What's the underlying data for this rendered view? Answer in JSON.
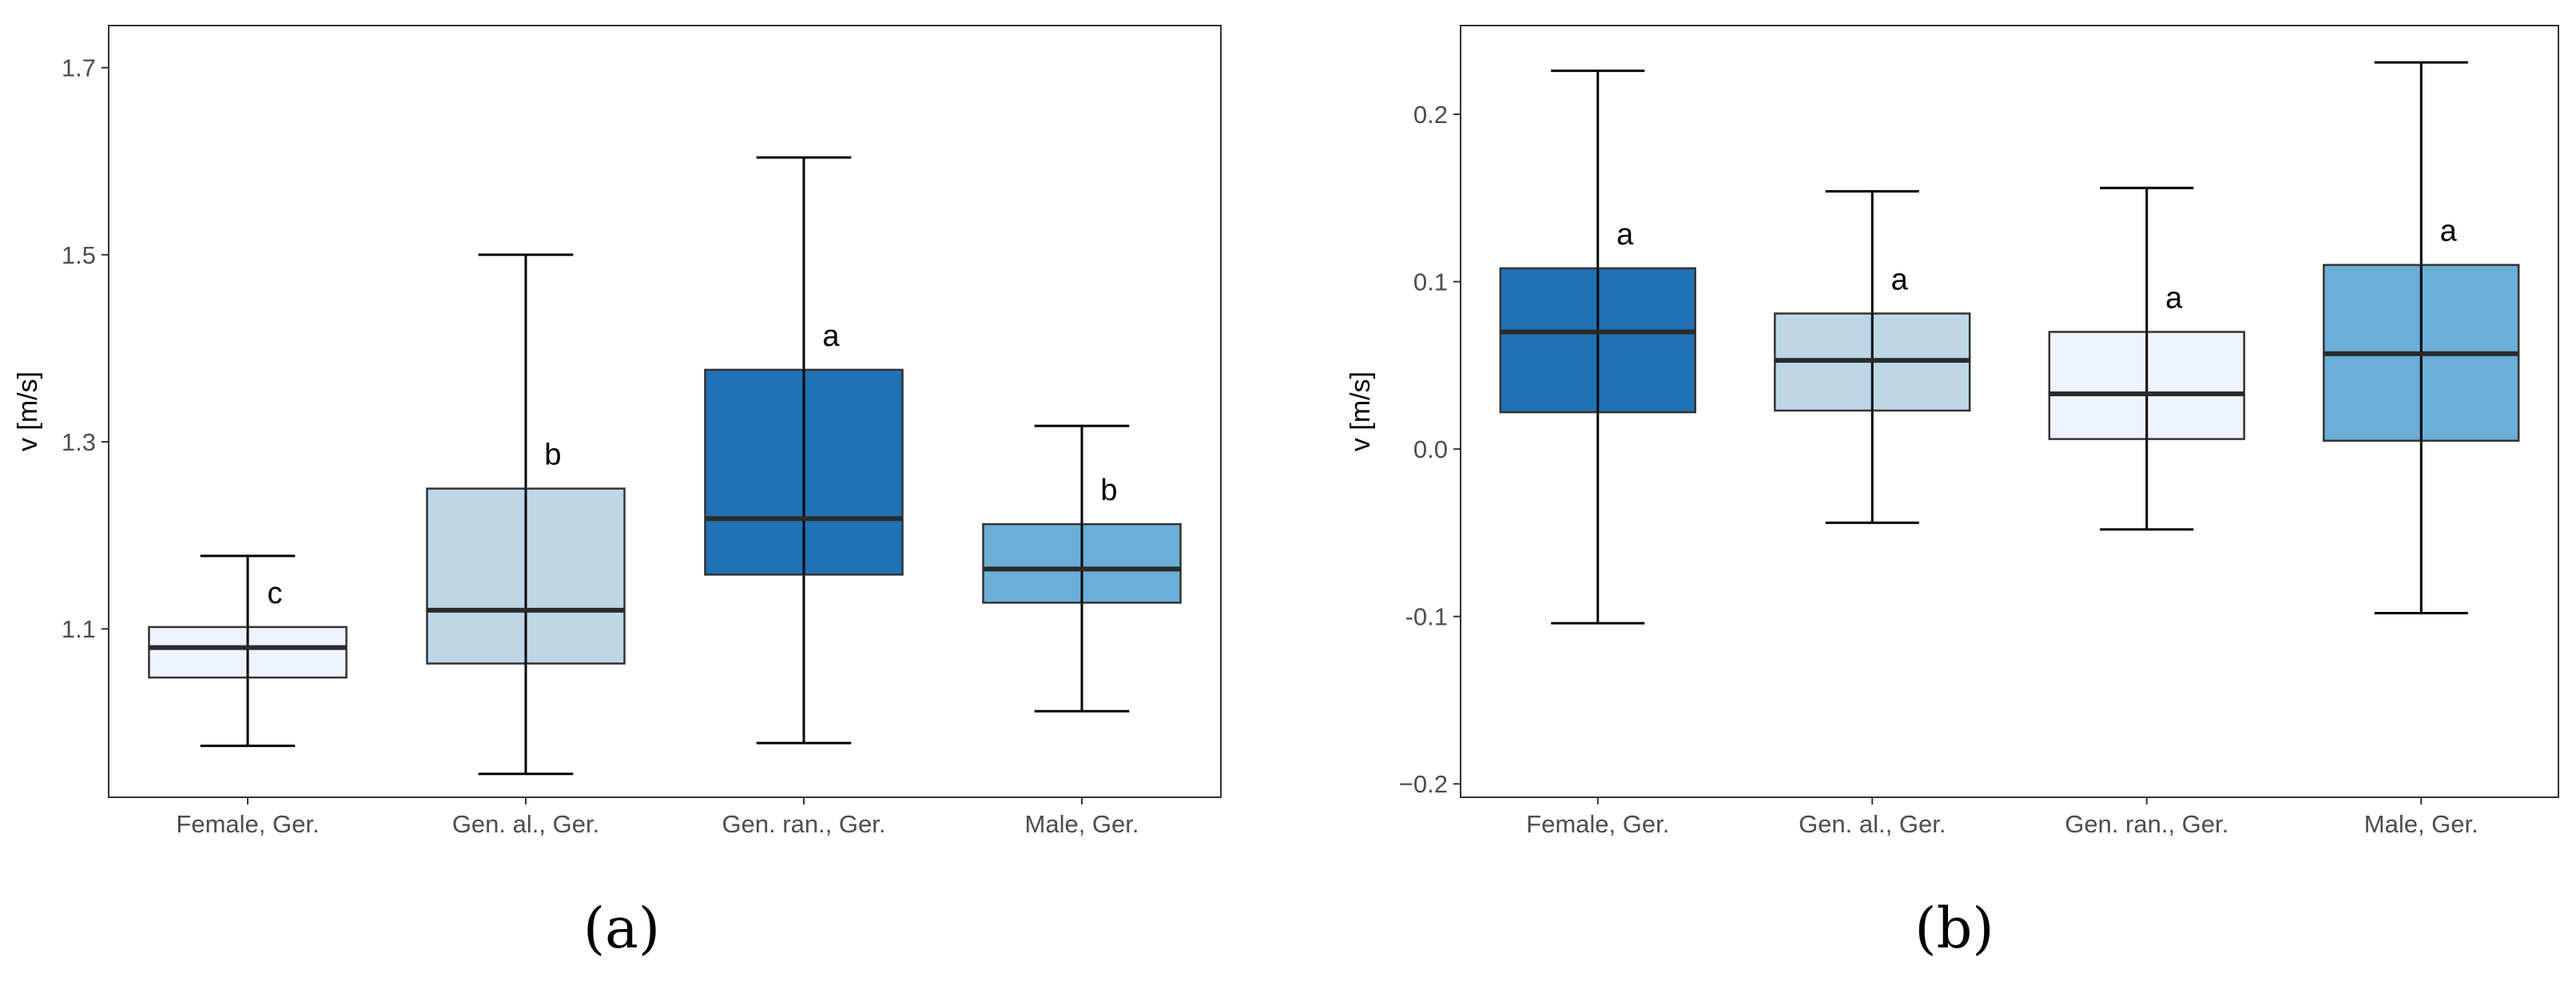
{
  "chart_data": [
    {
      "panel": "a",
      "caption": "(a)",
      "type": "box",
      "title": "",
      "xlabel": "",
      "ylabel": "v [m/s]",
      "ylim": [
        0.92,
        1.745
      ],
      "yticks": [
        1.1,
        1.3,
        1.5,
        1.7
      ],
      "ytick_labels": [
        "1.1",
        "1.3",
        "1.5",
        "1.7"
      ],
      "categories": [
        "Female, Ger.",
        "Gen. al., Ger.",
        "Gen. ran., Ger.",
        "Male, Ger."
      ],
      "boxes": [
        {
          "category": "Female, Ger.",
          "min": 0.975,
          "q1": 1.048,
          "median": 1.08,
          "q3": 1.102,
          "max": 1.178,
          "letter": "c",
          "color": "#eff3ff"
        },
        {
          "category": "Gen. al., Ger.",
          "min": 0.945,
          "q1": 1.063,
          "median": 1.12,
          "q3": 1.25,
          "max": 1.5,
          "letter": "b",
          "color": "#bdd7e7"
        },
        {
          "category": "Gen. ran., Ger.",
          "min": 0.978,
          "q1": 1.158,
          "median": 1.218,
          "q3": 1.377,
          "max": 1.604,
          "letter": "a",
          "color": "#2171b5"
        },
        {
          "category": "Male, Ger.",
          "min": 1.012,
          "q1": 1.128,
          "median": 1.164,
          "q3": 1.212,
          "max": 1.317,
          "letter": "b",
          "color": "#6baed6"
        }
      ]
    },
    {
      "panel": "b",
      "caption": "(b)",
      "type": "box",
      "title": "",
      "xlabel": "",
      "ylabel": "v [m/s]",
      "ylim": [
        -0.208,
        0.253
      ],
      "yticks": [
        -0.2,
        -0.1,
        0.0,
        0.1,
        0.2
      ],
      "ytick_labels": [
        "−0.2",
        "-0.1",
        "0.0",
        "0.1",
        "0.2"
      ],
      "categories": [
        "Female, Ger.",
        "Gen. al., Ger.",
        "Gen. ran., Ger.",
        "Male, Ger."
      ],
      "boxes": [
        {
          "category": "Female, Ger.",
          "min": -0.104,
          "q1": 0.022,
          "median": 0.07,
          "q3": 0.108,
          "max": 0.226,
          "letter": "a",
          "color": "#2171b5"
        },
        {
          "category": "Gen. al., Ger.",
          "min": -0.044,
          "q1": 0.023,
          "median": 0.053,
          "q3": 0.081,
          "max": 0.154,
          "letter": "a",
          "color": "#bdd7e7"
        },
        {
          "category": "Gen. ran., Ger.",
          "min": -0.048,
          "q1": 0.006,
          "median": 0.033,
          "q3": 0.07,
          "max": 0.156,
          "letter": "a",
          "color": "#eff3ff"
        },
        {
          "category": "Male, Ger.",
          "min": -0.098,
          "q1": 0.005,
          "median": 0.057,
          "q3": 0.11,
          "max": 0.231,
          "letter": "a",
          "color": "#6baed6"
        }
      ]
    }
  ]
}
